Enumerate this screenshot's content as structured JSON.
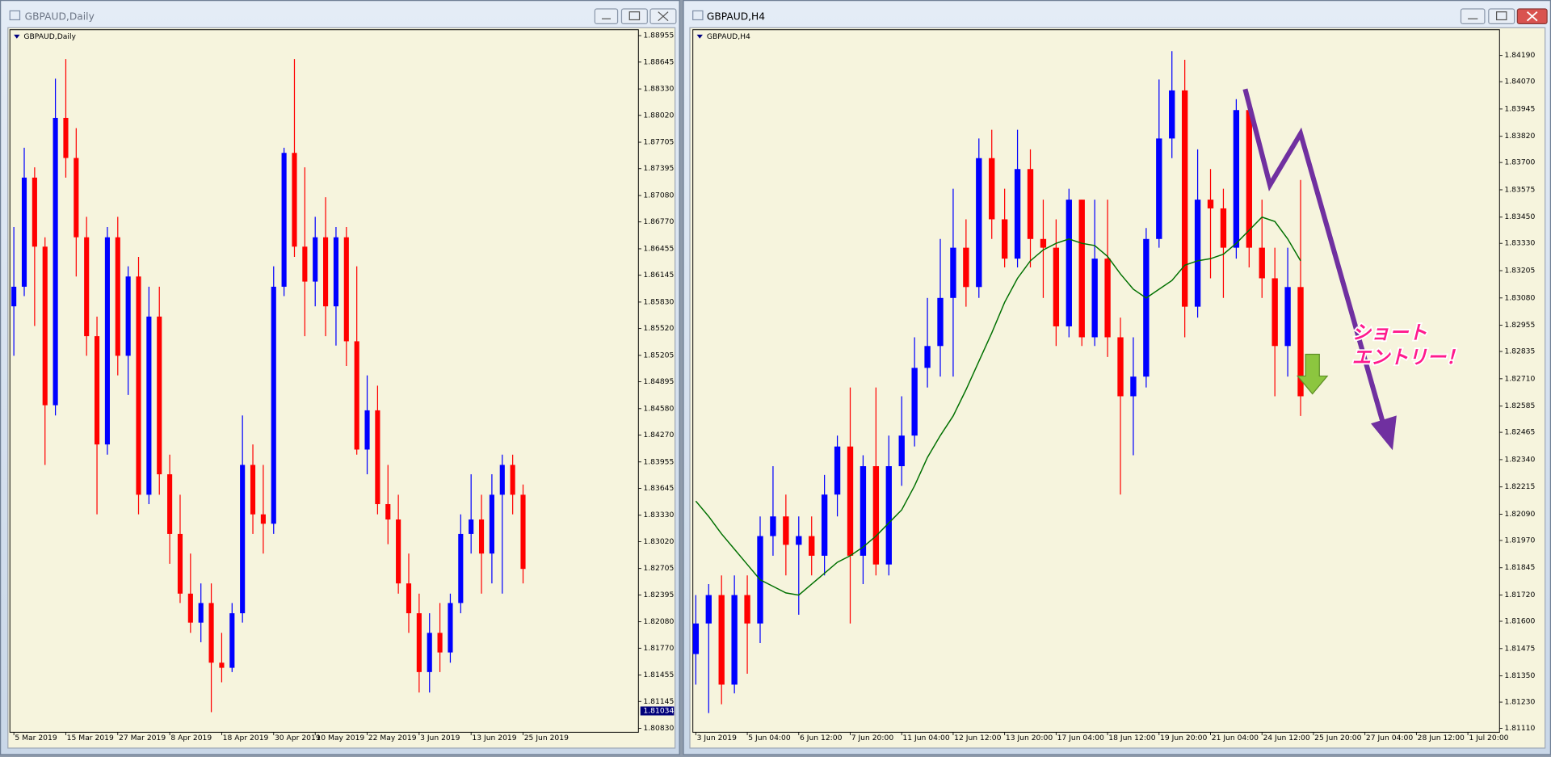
{
  "chart_data": [
    {
      "type": "candlestick",
      "window_title": "GBPAUD,Daily",
      "title": "GBPAUD,Daily",
      "up_color": "#0000ff",
      "down_color": "#ff0000",
      "xlim": [
        -0.38,
        60.1
      ],
      "xticks": [
        {
          "value": 0,
          "label": "5 Mar 2019"
        },
        {
          "value": 5,
          "label": "15 Mar 2019"
        },
        {
          "value": 10,
          "label": "27 Mar 2019"
        },
        {
          "value": 15,
          "label": "8 Apr 2019"
        },
        {
          "value": 20,
          "label": "18 Apr 2019"
        },
        {
          "value": 25,
          "label": "30 Apr 2019"
        },
        {
          "value": 29,
          "label": "10 May 2019"
        },
        {
          "value": 34,
          "label": "22 May 2019"
        },
        {
          "value": 39,
          "label": "3 Jun 2019"
        },
        {
          "value": 44,
          "label": "13 Jun 2019"
        },
        {
          "value": 49,
          "label": "25 Jun 2019"
        }
      ],
      "ylim": [
        1.80784,
        1.89025
      ],
      "yticks": [
        1.88955,
        1.88645,
        {
          "value": 1.8833,
          "label": "1.88330"
        },
        {
          "value": 1.8802,
          "label": "1.88020"
        },
        1.87705,
        1.87395,
        {
          "value": 1.8708,
          "label": "1.87080"
        },
        {
          "value": 1.8677,
          "label": "1.86770"
        },
        1.86455,
        1.86145,
        {
          "value": 1.8583,
          "label": "1.85830"
        },
        {
          "value": 1.8552,
          "label": "1.85520"
        },
        1.85205,
        1.84895,
        {
          "value": 1.8458,
          "label": "1.84580"
        },
        {
          "value": 1.8427,
          "label": "1.84270"
        },
        1.83955,
        1.83645,
        {
          "value": 1.8333,
          "label": "1.83330"
        },
        {
          "value": 1.8302,
          "label": "1.83020"
        },
        1.82705,
        1.82395,
        {
          "value": 1.8208,
          "label": "1.82080"
        },
        {
          "value": 1.8177,
          "label": "1.81770"
        },
        1.81455,
        1.81145,
        {
          "value": 1.8083,
          "label": "1.80830"
        }
      ],
      "last_price": 1.81034,
      "open": [
        1.8578,
        1.8601,
        1.8729,
        1.8648,
        1.8462,
        1.8799,
        1.8752,
        1.8659,
        1.8543,
        1.8416,
        1.8659,
        1.852,
        1.8613,
        1.8357,
        1.8566,
        1.8381,
        1.8311,
        1.8241,
        1.8207,
        1.823,
        1.816,
        1.8154,
        1.8218,
        1.8392,
        1.8334,
        1.8323,
        1.8601,
        1.8758,
        1.8648,
        1.8607,
        1.8659,
        1.8578,
        1.8659,
        1.8537,
        1.841,
        1.8456,
        1.8346,
        1.8328,
        1.8253,
        1.8218,
        1.8149,
        1.8195,
        1.8172,
        1.823,
        1.8311,
        1.8328,
        1.8288,
        1.8357,
        1.8392,
        1.8357
      ],
      "high": [
        1.8671,
        1.8764,
        1.8741,
        1.8659,
        1.8845,
        1.8868,
        1.8787,
        1.8683,
        1.8566,
        1.8671,
        1.8683,
        1.8625,
        1.8636,
        1.8601,
        1.8601,
        1.8404,
        1.8357,
        1.8288,
        1.8253,
        1.8253,
        1.8195,
        1.823,
        1.845,
        1.8416,
        1.8392,
        1.8625,
        1.8764,
        1.8868,
        1.8741,
        1.8683,
        1.8706,
        1.8671,
        1.8671,
        1.8625,
        1.8497,
        1.8485,
        1.8392,
        1.8357,
        1.8288,
        1.8241,
        1.8218,
        1.823,
        1.8241,
        1.8334,
        1.8381,
        1.8357,
        1.8381,
        1.8404,
        1.8404,
        1.8369
      ],
      "low": [
        1.852,
        1.859,
        1.8555,
        1.8392,
        1.845,
        1.8729,
        1.8613,
        1.852,
        1.8334,
        1.8404,
        1.8497,
        1.8474,
        1.8334,
        1.8346,
        1.8357,
        1.8276,
        1.823,
        1.8195,
        1.8184,
        1.8102,
        1.8137,
        1.8149,
        1.8207,
        1.8311,
        1.8288,
        1.8311,
        1.859,
        1.8636,
        1.8543,
        1.8578,
        1.8543,
        1.8532,
        1.8508,
        1.8404,
        1.8381,
        1.8334,
        1.8299,
        1.8241,
        1.8195,
        1.8125,
        1.8125,
        1.8149,
        1.816,
        1.8218,
        1.8288,
        1.8241,
        1.8253,
        1.8241,
        1.8334,
        1.8253
      ],
      "close": [
        1.8601,
        1.8729,
        1.8648,
        1.8462,
        1.8799,
        1.8752,
        1.8659,
        1.8543,
        1.8416,
        1.8659,
        1.852,
        1.8613,
        1.8357,
        1.8566,
        1.8381,
        1.8311,
        1.8241,
        1.8207,
        1.823,
        1.816,
        1.8154,
        1.8218,
        1.8392,
        1.8334,
        1.8323,
        1.8601,
        1.8758,
        1.8648,
        1.8607,
        1.8659,
        1.8578,
        1.8659,
        1.8537,
        1.841,
        1.8456,
        1.8346,
        1.8328,
        1.8253,
        1.8218,
        1.8149,
        1.8195,
        1.8172,
        1.823,
        1.8311,
        1.8328,
        1.8288,
        1.8357,
        1.8392,
        1.8357,
        1.827
      ]
    },
    {
      "type": "candlestick",
      "window_title": "GBPAUD,H4",
      "title": "GBPAUD,H4",
      "up_color": "#0000ff",
      "down_color": "#ff0000",
      "xlim": [
        -0.23,
        62.46
      ],
      "xticks": [
        {
          "value": 0,
          "label": "3 Jun 2019"
        },
        {
          "value": 4,
          "label": "5 Jun 04:00"
        },
        {
          "value": 8,
          "label": "6 Jun 12:00"
        },
        {
          "value": 12,
          "label": "7 Jun 20:00"
        },
        {
          "value": 16,
          "label": "11 Jun 04:00"
        },
        {
          "value": 20,
          "label": "12 Jun 12:00"
        },
        {
          "value": 24,
          "label": "13 Jun 20:00"
        },
        {
          "value": 28,
          "label": "17 Jun 04:00"
        },
        {
          "value": 32,
          "label": "18 Jun 12:00"
        },
        {
          "value": 36,
          "label": "19 Jun 20:00"
        },
        {
          "value": 40,
          "label": "21 Jun 04:00"
        },
        {
          "value": 44,
          "label": "24 Jun 12:00"
        },
        {
          "value": 48,
          "label": "25 Jun 20:00"
        },
        {
          "value": 52,
          "label": "27 Jun 04:00"
        },
        {
          "value": 56,
          "label": "28 Jun 12:00"
        },
        {
          "value": 60,
          "label": "1 Jul 20:00"
        }
      ],
      "ylim": [
        1.81092,
        1.84308
      ],
      "yticks": [
        {
          "value": 1.8419,
          "label": "1.84190"
        },
        {
          "value": 1.8407,
          "label": "1.84070"
        },
        1.83945,
        {
          "value": 1.8382,
          "label": "1.83820"
        },
        {
          "value": 1.837,
          "label": "1.83700"
        },
        1.83575,
        {
          "value": 1.8345,
          "label": "1.83450"
        },
        {
          "value": 1.8333,
          "label": "1.83330"
        },
        1.83205,
        {
          "value": 1.8308,
          "label": "1.83080"
        },
        1.82955,
        1.82835,
        {
          "value": 1.8271,
          "label": "1.82710"
        },
        1.82585,
        1.82465,
        {
          "value": 1.8234,
          "label": "1.82340"
        },
        1.82215,
        {
          "value": 1.8209,
          "label": "1.82090"
        },
        {
          "value": 1.8197,
          "label": "1.81970"
        },
        1.81845,
        {
          "value": 1.8172,
          "label": "1.81720"
        },
        {
          "value": 1.816,
          "label": "1.81600"
        },
        1.81475,
        {
          "value": 1.8135,
          "label": "1.81350"
        },
        {
          "value": 1.8123,
          "label": "1.81230"
        },
        {
          "value": 1.8111,
          "label": "1.81110"
        }
      ],
      "open": [
        1.8145,
        1.8159,
        1.8172,
        1.8131,
        1.8172,
        1.8159,
        1.8199,
        1.8208,
        1.8195,
        1.8199,
        1.819,
        1.8218,
        1.824,
        1.819,
        1.8231,
        1.8186,
        1.8231,
        1.8245,
        1.8276,
        1.8286,
        1.8308,
        1.8331,
        1.8313,
        1.8372,
        1.8344,
        1.8326,
        1.8367,
        1.8335,
        1.8331,
        1.8295,
        1.8353,
        1.829,
        1.8326,
        1.829,
        1.8263,
        1.8272,
        1.8335,
        1.8381,
        1.8403,
        1.8304,
        1.8353,
        1.8349,
        1.8331,
        1.8394,
        1.8331,
        1.8317,
        1.8286,
        1.8313
      ],
      "high": [
        1.8172,
        1.8177,
        1.8181,
        1.8181,
        1.8181,
        1.8208,
        1.8231,
        1.8218,
        1.8208,
        1.8208,
        1.8227,
        1.8245,
        1.8267,
        1.8236,
        1.8267,
        1.8245,
        1.8263,
        1.829,
        1.8308,
        1.8335,
        1.8358,
        1.8344,
        1.8381,
        1.8385,
        1.8358,
        1.8385,
        1.8376,
        1.8353,
        1.8344,
        1.8358,
        1.8353,
        1.8353,
        1.8353,
        1.8299,
        1.829,
        1.834,
        1.8408,
        1.8421,
        1.8417,
        1.8376,
        1.8367,
        1.8358,
        1.8399,
        1.8399,
        1.8353,
        1.8331,
        1.8331,
        1.8362
      ],
      "low": [
        1.8131,
        1.8118,
        1.8122,
        1.8127,
        1.8136,
        1.815,
        1.819,
        1.8181,
        1.8163,
        1.8181,
        1.8181,
        1.8208,
        1.8159,
        1.8177,
        1.8181,
        1.8181,
        1.8222,
        1.824,
        1.8267,
        1.8272,
        1.8272,
        1.8304,
        1.8308,
        1.8335,
        1.8322,
        1.8322,
        1.8322,
        1.8308,
        1.8286,
        1.829,
        1.8286,
        1.8286,
        1.8281,
        1.8218,
        1.8236,
        1.8267,
        1.8331,
        1.8372,
        1.829,
        1.8299,
        1.8317,
        1.8308,
        1.8326,
        1.8322,
        1.8308,
        1.8263,
        1.8272,
        1.8254
      ],
      "close": [
        1.8159,
        1.8172,
        1.8131,
        1.8172,
        1.8159,
        1.8199,
        1.8208,
        1.8195,
        1.8199,
        1.819,
        1.8218,
        1.824,
        1.819,
        1.8231,
        1.8186,
        1.8231,
        1.8245,
        1.8276,
        1.8286,
        1.8308,
        1.8331,
        1.8313,
        1.8372,
        1.8344,
        1.8326,
        1.8367,
        1.8335,
        1.8331,
        1.8295,
        1.8353,
        1.829,
        1.8326,
        1.829,
        1.8263,
        1.8272,
        1.8335,
        1.8381,
        1.8403,
        1.8304,
        1.8353,
        1.8349,
        1.8331,
        1.8394,
        1.8331,
        1.8317,
        1.8286,
        1.8313,
        1.8263
      ],
      "moving_average": {
        "color": "#007000",
        "values": [
          1.8215,
          1.8208,
          1.82,
          1.8193,
          1.8186,
          1.8179,
          1.8176,
          1.8173,
          1.8172,
          1.8177,
          1.8182,
          1.8187,
          1.819,
          1.8194,
          1.8199,
          1.8205,
          1.8211,
          1.8222,
          1.8235,
          1.8245,
          1.8254,
          1.8266,
          1.8279,
          1.8292,
          1.8306,
          1.8317,
          1.8325,
          1.833,
          1.8333,
          1.8335,
          1.8333,
          1.8332,
          1.8327,
          1.8319,
          1.8312,
          1.8308,
          1.8312,
          1.8316,
          1.8323,
          1.8325,
          1.8326,
          1.8328,
          1.8333,
          1.8339,
          1.8345,
          1.8343,
          1.8335,
          1.8325
        ]
      },
      "annotations": [
        "ショート",
        "エントリー！"
      ]
    }
  ]
}
